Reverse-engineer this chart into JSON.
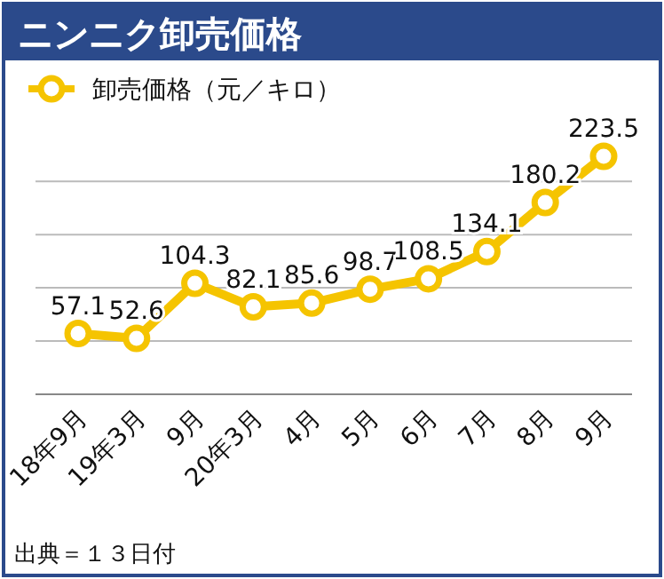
{
  "chart_data": {
    "type": "line",
    "title": "ニンニク卸売価格",
    "categories": [
      "18年9月",
      "19年3月",
      "9月",
      "20年3月",
      "4月",
      "5月",
      "6月",
      "7月",
      "8月",
      "9月"
    ],
    "series": [
      {
        "name": "卸売価格（元／キロ）",
        "color": "#f5c400",
        "values": [
          57.1,
          52.6,
          104.3,
          82.1,
          85.6,
          98.7,
          108.5,
          134.1,
          180.2,
          223.5
        ]
      }
    ],
    "yticks": [
      {
        "value": 50,
        "label": null
      },
      {
        "value": 100,
        "label": null
      },
      {
        "value": 150,
        "label": null
      },
      {
        "value": 200,
        "label": null
      }
    ],
    "tick_labels": "x",
    "grid": "y",
    "legend": "top left",
    "marker": "circle",
    "line_style": "solid",
    "data_labels": true,
    "annotations": [
      "出典＝１３日付"
    ]
  }
}
